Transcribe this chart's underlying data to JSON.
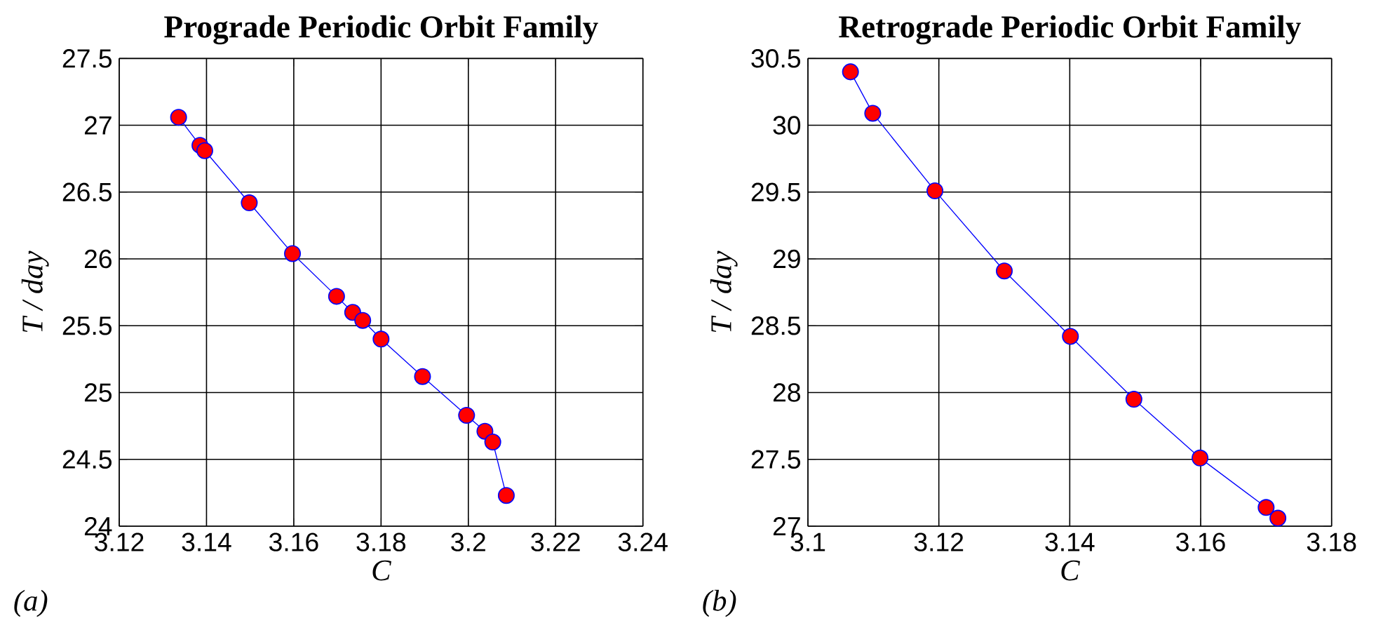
{
  "chart_data": [
    {
      "type": "line",
      "title": "Prograde Periodic Orbit Family",
      "xlabel": "C",
      "ylabel": "T / day",
      "annotations": [
        "(a)"
      ],
      "xlim": [
        3.12,
        3.24
      ],
      "xticks": [
        3.12,
        3.14,
        3.16,
        3.18,
        3.2,
        3.22,
        3.24
      ],
      "ylim": [
        24,
        27.5
      ],
      "yticks": [
        24,
        24.5,
        25,
        25.5,
        26,
        26.5,
        27,
        27.5
      ],
      "grid": true,
      "marker": "circle",
      "line_style": "solid",
      "series": [
        {
          "color": "#0000ff",
          "x": [
            3.1336,
            3.1385,
            3.1396,
            3.1498,
            3.1597,
            3.1698,
            3.1735,
            3.1758,
            3.18,
            3.1895,
            3.1996,
            3.2038,
            3.2056,
            3.2087
          ],
          "values": [
            27.06,
            26.85,
            26.81,
            26.42,
            26.04,
            25.72,
            25.6,
            25.54,
            25.4,
            25.12,
            24.83,
            24.71,
            24.63,
            24.23
          ]
        }
      ]
    },
    {
      "type": "line",
      "title": "Retrograde Periodic Orbit Family",
      "xlabel": "C",
      "ylabel": "T / day",
      "annotations": [
        "(b)"
      ],
      "xlim": [
        3.1,
        3.18
      ],
      "xticks": [
        3.1,
        3.12,
        3.14,
        3.16,
        3.18
      ],
      "ylim": [
        27,
        30.5
      ],
      "yticks": [
        27,
        27.5,
        28,
        28.5,
        29,
        29.5,
        30,
        30.5
      ],
      "grid": true,
      "marker": "circle",
      "line_style": "solid",
      "series": [
        {
          "color": "#0000ff",
          "x": [
            3.1065,
            3.1099,
            3.1194,
            3.13,
            3.1401,
            3.1498,
            3.1599,
            3.17,
            3.1718
          ],
          "values": [
            30.4,
            30.09,
            29.51,
            28.91,
            28.42,
            27.95,
            27.51,
            27.14,
            27.06
          ]
        }
      ]
    }
  ]
}
